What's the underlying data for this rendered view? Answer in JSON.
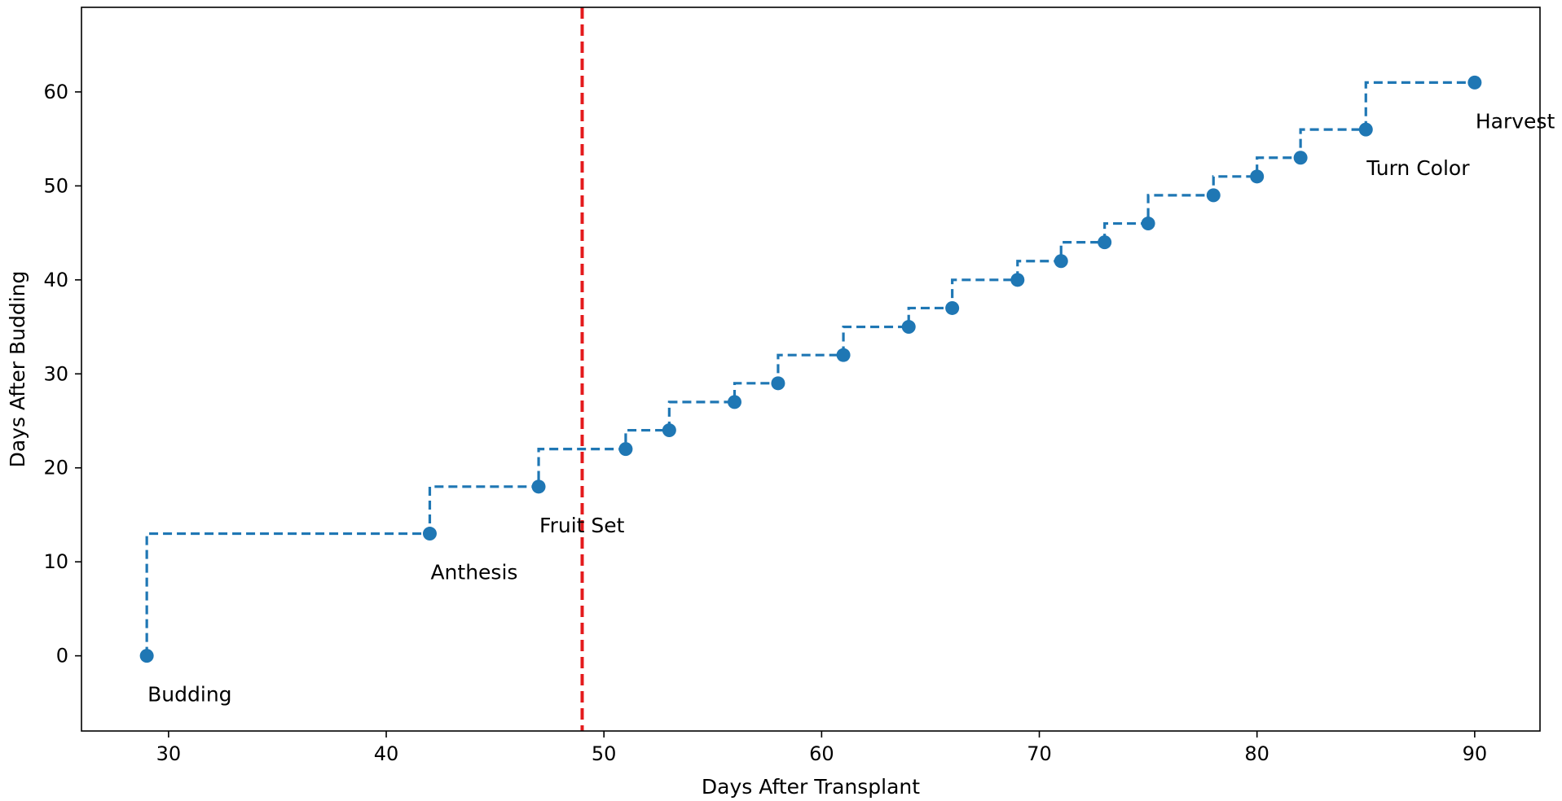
{
  "chart_data": {
    "type": "line",
    "title": "",
    "xlabel": "Days After Transplant",
    "ylabel": "Days After Budding",
    "xlim": [
      26,
      93
    ],
    "ylim": [
      -8,
      69
    ],
    "xticks": [
      30,
      40,
      50,
      60,
      70,
      80,
      90
    ],
    "yticks": [
      0,
      10,
      20,
      30,
      40,
      50,
      60
    ],
    "grid": false,
    "legend": "none",
    "step_mode": "post",
    "series": [
      {
        "x": [
          29,
          42,
          47,
          51,
          53,
          56,
          58,
          61,
          64,
          66,
          69,
          71,
          73,
          75,
          78,
          80,
          82,
          85,
          90
        ],
        "y": [
          0,
          13,
          18,
          22,
          24,
          27,
          29,
          32,
          35,
          37,
          40,
          42,
          44,
          46,
          49,
          51,
          53,
          56,
          61
        ],
        "color": "#1f77b4",
        "line_style": "dashed",
        "marker": "circle"
      }
    ],
    "vertical_line": {
      "x": 49,
      "color": "#e41a1c",
      "line_style": "dashed"
    },
    "annotations": [
      {
        "text": "Budding",
        "x": 29,
        "y": 0
      },
      {
        "text": "Anthesis",
        "x": 42,
        "y": 13
      },
      {
        "text": "Fruit Set",
        "x": 47,
        "y": 18
      },
      {
        "text": "Turn Color",
        "x": 85,
        "y": 56
      },
      {
        "text": "Harvest",
        "x": 90,
        "y": 61
      }
    ]
  }
}
